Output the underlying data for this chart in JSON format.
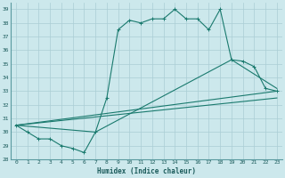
{
  "xlabel": "Humidex (Indice chaleur)",
  "bg_color": "#cce8ec",
  "grid_color": "#aacdd4",
  "line_color": "#1a7a6e",
  "xlim": [
    -0.5,
    23.5
  ],
  "ylim": [
    28,
    39.5
  ],
  "xticks": [
    0,
    1,
    2,
    3,
    4,
    5,
    6,
    7,
    8,
    9,
    10,
    11,
    12,
    13,
    14,
    15,
    16,
    17,
    18,
    19,
    20,
    21,
    22,
    23
  ],
  "yticks": [
    28,
    29,
    30,
    31,
    32,
    33,
    34,
    35,
    36,
    37,
    38,
    39
  ],
  "line1_x": [
    0,
    1,
    2,
    3,
    4,
    5,
    6,
    7,
    8,
    9,
    10,
    11,
    12,
    13,
    14,
    15,
    16,
    17,
    18,
    19,
    20,
    21,
    22,
    23
  ],
  "line1_y": [
    30.5,
    30.0,
    29.5,
    29.5,
    29.0,
    28.8,
    28.5,
    30.0,
    32.5,
    37.5,
    38.2,
    38.0,
    38.3,
    38.3,
    39.0,
    38.3,
    38.3,
    37.5,
    39.0,
    35.3,
    35.2,
    34.8,
    33.2,
    33.0
  ],
  "line2_x": [
    0,
    7,
    19,
    23
  ],
  "line2_y": [
    30.5,
    30.0,
    35.3,
    33.2
  ],
  "line3_x": [
    0,
    23
  ],
  "line3_y": [
    30.5,
    33.0
  ],
  "line4_x": [
    0,
    23
  ],
  "line4_y": [
    30.5,
    32.5
  ]
}
